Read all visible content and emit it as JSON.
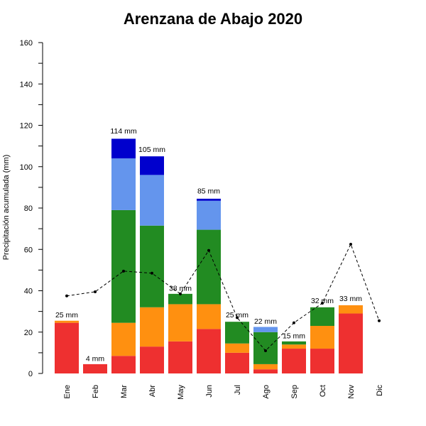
{
  "chart_data": {
    "type": "bar",
    "title": "Arenzana de Abajo 2020",
    "xlabel": "",
    "ylabel": "Precipitación acumulada (mm)",
    "ylim": [
      0,
      160
    ],
    "yticks": [
      0,
      20,
      40,
      60,
      80,
      100,
      120,
      140,
      160
    ],
    "categories": [
      "Ene",
      "Feb",
      "Mar",
      "Abr",
      "May",
      "Jun",
      "Jul",
      "Ago",
      "Sep",
      "Oct",
      "Nov",
      "Dic"
    ],
    "stack_colors": [
      "#ee3030",
      "#ff9010",
      "#228b22",
      "#6495ed",
      "#0000cd"
    ],
    "stacks": [
      [
        24.5,
        1,
        0,
        0,
        0
      ],
      [
        4.5,
        0,
        0,
        0,
        0
      ],
      [
        8.5,
        16,
        54.5,
        25,
        9.5
      ],
      [
        13,
        19,
        39.5,
        24.5,
        9
      ],
      [
        15.5,
        18,
        5,
        0,
        0
      ],
      [
        21.5,
        12,
        36,
        14,
        1
      ],
      [
        10,
        4.5,
        10.5,
        0,
        0
      ],
      [
        2,
        2.5,
        15.5,
        2.5,
        0
      ],
      [
        12,
        2,
        1.5,
        0,
        0
      ],
      [
        12,
        11,
        9,
        0,
        0
      ],
      [
        29,
        4,
        0,
        0,
        0
      ],
      [
        0,
        0,
        0,
        0,
        0
      ]
    ],
    "totals": [
      25,
      4,
      114,
      105,
      38,
      85,
      25,
      22,
      15,
      32,
      33,
      null
    ],
    "total_labels": [
      "25 mm",
      "4 mm",
      "114 mm",
      "105 mm",
      "38 mm",
      "85 mm",
      "25 mm",
      "22 mm",
      "15 mm",
      "32 mm",
      "33 mm",
      ""
    ],
    "reference_line": {
      "style": "dashed",
      "color": "#000000",
      "values": [
        37.5,
        39.5,
        49.5,
        48.5,
        38.5,
        59.5,
        27,
        11,
        24.5,
        34,
        62.5,
        25.5
      ]
    },
    "grid": false,
    "legend": "none"
  }
}
